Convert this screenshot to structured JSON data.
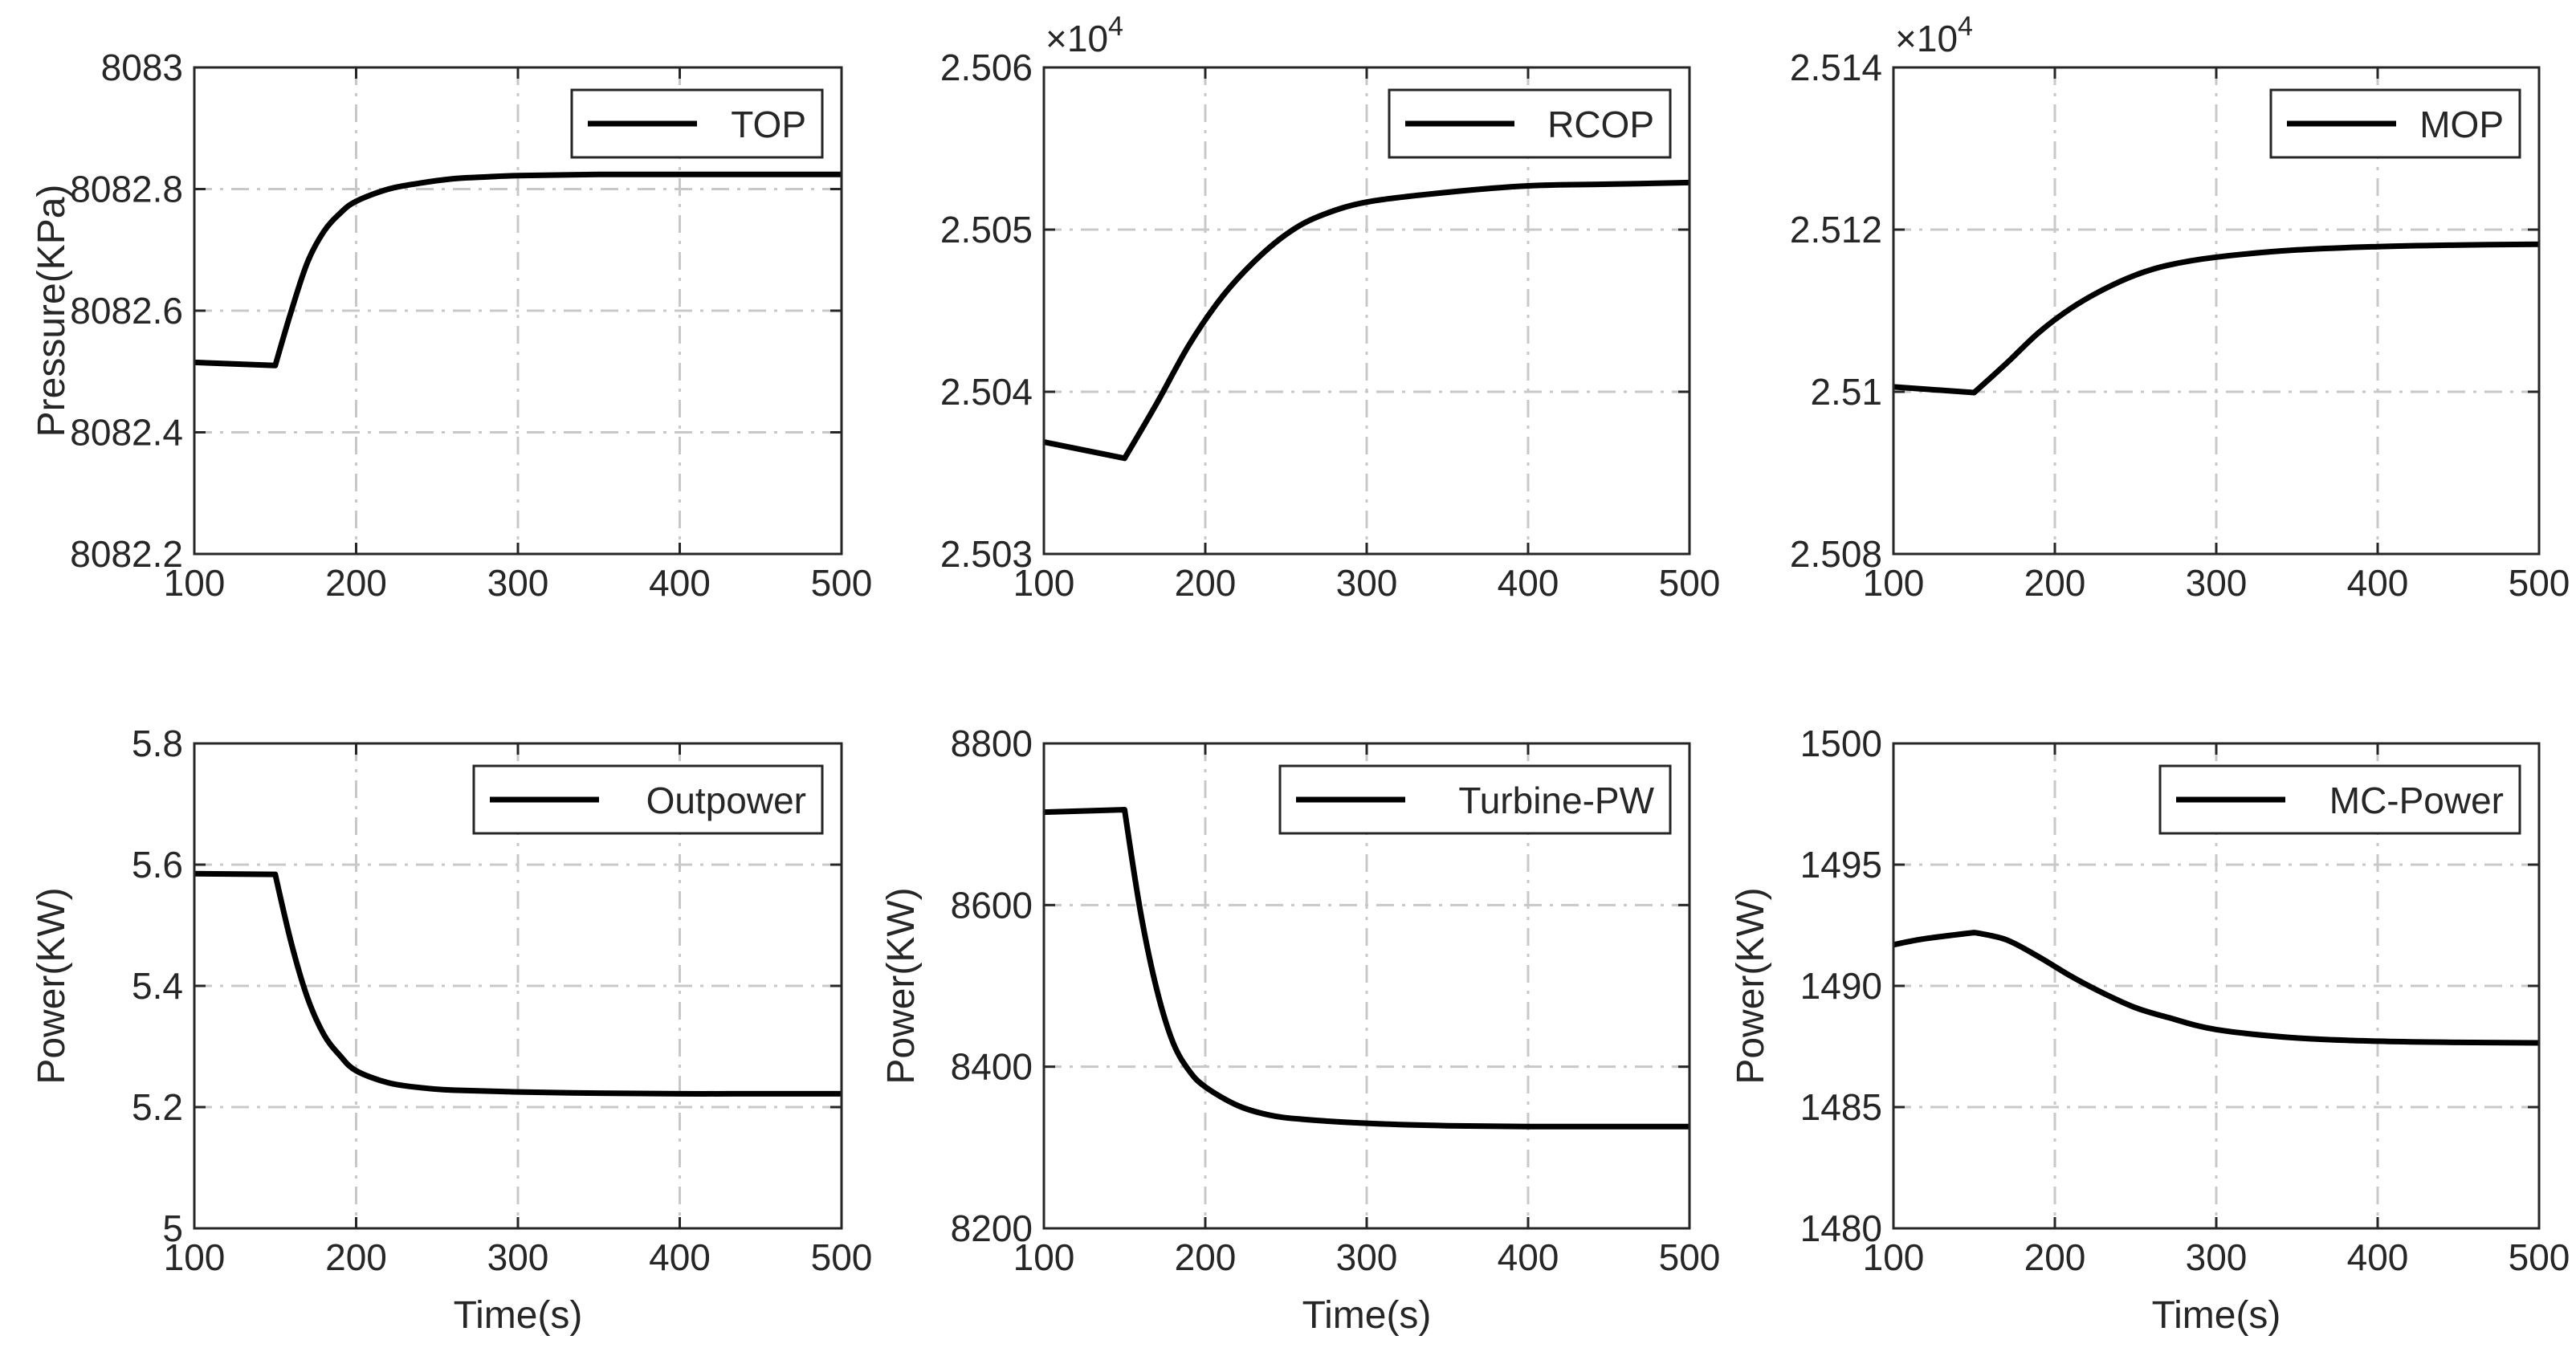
{
  "figure": {
    "layout": "2x3 grid of line plots"
  },
  "colors": {
    "line": "#000000",
    "axis": "#262626",
    "grid": "#c8c8c8",
    "background": "#ffffff"
  },
  "chart_data": [
    {
      "id": "top",
      "type": "line",
      "title": "",
      "xlabel": "",
      "ylabel": "Pressure(KPa)",
      "xlim": [
        100,
        500
      ],
      "ylim": [
        8082.2,
        8083
      ],
      "xticks": [
        100,
        200,
        300,
        400,
        500
      ],
      "yticks": [
        8082.2,
        8082.4,
        8082.6,
        8082.8,
        8083
      ],
      "ytick_labels": [
        "8082.2",
        "8082.4",
        "8082.6",
        "8082.8",
        "8083"
      ],
      "exponent": "",
      "legend": "top-right",
      "grid": true,
      "series": [
        {
          "name": "TOP",
          "x": [
            100,
            150,
            160,
            170,
            180,
            190,
            200,
            220,
            240,
            260,
            280,
            300,
            350,
            400,
            450,
            500
          ],
          "values": [
            8082.515,
            8082.51,
            8082.6,
            8082.68,
            8082.73,
            8082.76,
            8082.78,
            8082.8,
            8082.81,
            8082.817,
            8082.82,
            8082.822,
            8082.824,
            8082.824,
            8082.824,
            8082.824
          ]
        }
      ]
    },
    {
      "id": "rcop",
      "type": "line",
      "title": "",
      "xlabel": "",
      "ylabel": "",
      "xlim": [
        100,
        500
      ],
      "ylim": [
        25030,
        25060
      ],
      "xticks": [
        100,
        200,
        300,
        400,
        500
      ],
      "yticks": [
        25030,
        25040,
        25050,
        25060
      ],
      "ytick_labels": [
        "2.503",
        "2.504",
        "2.505",
        "2.506"
      ],
      "exponent": "×10",
      "exponent_power": "4",
      "legend": "top-right",
      "grid": true,
      "series": [
        {
          "name": "RCOP",
          "x": [
            100,
            150,
            170,
            190,
            210,
            230,
            250,
            270,
            300,
            350,
            400,
            450,
            500
          ],
          "values": [
            25036.9,
            25035.9,
            25039.3,
            25042.9,
            25045.8,
            25048.0,
            25049.7,
            25050.8,
            25051.7,
            25052.3,
            25052.7,
            25052.8,
            25052.9
          ]
        }
      ]
    },
    {
      "id": "mop",
      "type": "line",
      "title": "",
      "xlabel": "",
      "ylabel": "",
      "xlim": [
        100,
        500
      ],
      "ylim": [
        25080,
        25140
      ],
      "xticks": [
        100,
        200,
        300,
        400,
        500
      ],
      "yticks": [
        25080,
        25100,
        25120,
        25140
      ],
      "ytick_labels": [
        "2.508",
        "2.51",
        "2.512",
        "2.514"
      ],
      "exponent": "×10",
      "exponent_power": "4",
      "legend": "top-right",
      "grid": true,
      "series": [
        {
          "name": "MOP",
          "x": [
            100,
            150,
            170,
            190,
            210,
            230,
            250,
            270,
            300,
            350,
            400,
            450,
            500
          ],
          "values": [
            25100.6,
            25099.9,
            25103.5,
            25107.3,
            25110.3,
            25112.6,
            25114.4,
            25115.6,
            25116.6,
            25117.5,
            25117.9,
            25118.1,
            25118.2
          ]
        }
      ]
    },
    {
      "id": "outpower",
      "type": "line",
      "title": "",
      "xlabel": "Time(s)",
      "ylabel": "Power(KW)",
      "xlim": [
        100,
        500
      ],
      "ylim": [
        5.0,
        5.8
      ],
      "xticks": [
        100,
        200,
        300,
        400,
        500
      ],
      "yticks": [
        5.0,
        5.2,
        5.4,
        5.6,
        5.8
      ],
      "ytick_labels": [
        "5",
        "5.2",
        "5.4",
        "5.6",
        "5.8"
      ],
      "exponent": "",
      "legend": "top-right",
      "grid": true,
      "series": [
        {
          "name": "Outpower",
          "x": [
            100,
            150,
            160,
            170,
            180,
            190,
            200,
            220,
            240,
            260,
            300,
            350,
            400,
            450,
            500
          ],
          "values": [
            5.585,
            5.584,
            5.47,
            5.38,
            5.32,
            5.285,
            5.26,
            5.24,
            5.232,
            5.228,
            5.225,
            5.223,
            5.222,
            5.222,
            5.222
          ]
        }
      ]
    },
    {
      "id": "turbine",
      "type": "line",
      "title": "",
      "xlabel": "Time(s)",
      "ylabel": "Power(KW)",
      "xlim": [
        100,
        500
      ],
      "ylim": [
        8200,
        8800
      ],
      "xticks": [
        100,
        200,
        300,
        400,
        500
      ],
      "yticks": [
        8200,
        8400,
        8600,
        8800
      ],
      "ytick_labels": [
        "8200",
        "8400",
        "8600",
        "8800"
      ],
      "exponent": "",
      "legend": "top-right",
      "grid": true,
      "series": [
        {
          "name": "Turbine-PW",
          "x": [
            100,
            150,
            160,
            170,
            180,
            190,
            200,
            220,
            240,
            260,
            300,
            350,
            400,
            450,
            500
          ],
          "values": [
            8715,
            8718,
            8590,
            8495,
            8430,
            8395,
            8375,
            8352,
            8340,
            8335,
            8330,
            8327,
            8326,
            8326,
            8326
          ]
        }
      ]
    },
    {
      "id": "mcpower",
      "type": "line",
      "title": "",
      "xlabel": "Time(s)",
      "ylabel": "Power(KW)",
      "xlim": [
        100,
        500
      ],
      "ylim": [
        1480,
        1500
      ],
      "xticks": [
        100,
        200,
        300,
        400,
        500
      ],
      "yticks": [
        1480,
        1485,
        1490,
        1495,
        1500
      ],
      "ytick_labels": [
        "1480",
        "1485",
        "1490",
        "1495",
        "1500"
      ],
      "exponent": "",
      "legend": "top-right",
      "grid": true,
      "series": [
        {
          "name": "MC-Power",
          "x": [
            100,
            120,
            150,
            170,
            190,
            210,
            230,
            250,
            270,
            300,
            350,
            400,
            450,
            500
          ],
          "values": [
            1491.7,
            1491.95,
            1492.2,
            1491.9,
            1491.2,
            1490.4,
            1489.7,
            1489.1,
            1488.7,
            1488.2,
            1487.85,
            1487.72,
            1487.67,
            1487.65
          ]
        }
      ]
    }
  ]
}
